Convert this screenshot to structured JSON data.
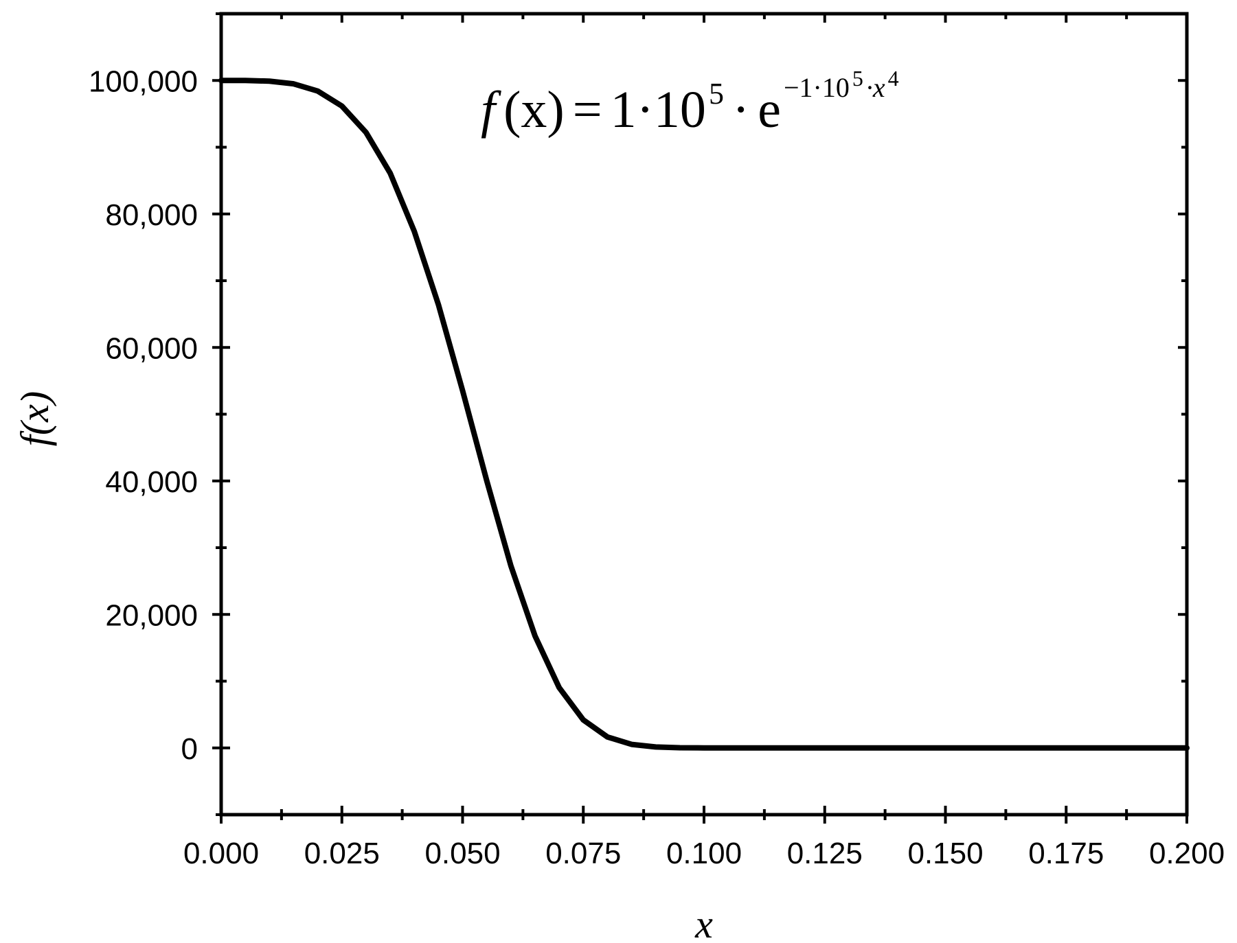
{
  "chart_data": {
    "type": "line",
    "title": "",
    "xlabel": "x",
    "ylabel": "f(x)",
    "xlim": [
      0.0,
      0.2
    ],
    "ylim": [
      -10000,
      110000
    ],
    "x_ticks": [
      0.0,
      0.025,
      0.05,
      0.075,
      0.1,
      0.125,
      0.15,
      0.175,
      0.2
    ],
    "x_tick_labels": [
      "0.000",
      "0.025",
      "0.050",
      "0.075",
      "0.100",
      "0.125",
      "0.150",
      "0.175",
      "0.200"
    ],
    "y_ticks": [
      0,
      20000,
      40000,
      60000,
      80000,
      100000
    ],
    "y_tick_labels": [
      "0",
      "20,000",
      "40,000",
      "60,000",
      "80,000",
      "100,000"
    ],
    "grid": false,
    "legend": "none",
    "line_color": "#000000",
    "annotation": {
      "f": "f",
      "paren_x": "(x)",
      "equals": "=",
      "coef": "1·10",
      "exp": "5",
      "dot": "·",
      "e": "e",
      "sup_main": "−1·10",
      "sup_exp": "5",
      "sup_x": "·x",
      "sup_pow": "4"
    },
    "series": [
      {
        "x": [
          0.0,
          0.005,
          0.01,
          0.015,
          0.02,
          0.025,
          0.03,
          0.035,
          0.04,
          0.045,
          0.05,
          0.055,
          0.06,
          0.065,
          0.07,
          0.075,
          0.08,
          0.085,
          0.09,
          0.095,
          0.1,
          0.11,
          0.12,
          0.14,
          0.16,
          0.18,
          0.2
        ],
        "y": [
          100000,
          99994,
          99900,
          99495,
          98413,
          96169,
          92220,
          86129,
          77388,
          66403,
          53526,
          40048,
          27292,
          16776,
          9036,
          4196,
          1640,
          530,
          143,
          31,
          5,
          0,
          0,
          0,
          0,
          0,
          0
        ]
      }
    ]
  }
}
